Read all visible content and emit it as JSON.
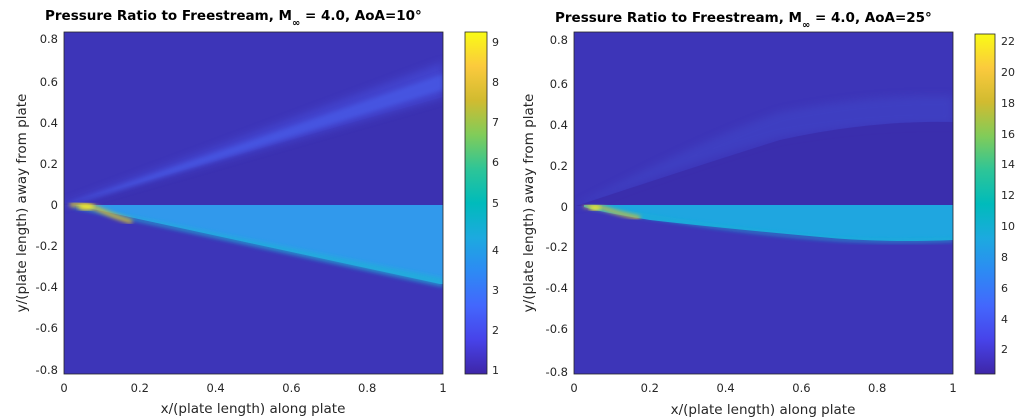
{
  "chart_data": [
    {
      "type": "heatmap",
      "title": "Pressure Ratio to Freestream, M",
      "title_sub": "∞",
      "title_rest": " = 4.0, AoA=10°",
      "xlabel": "x/(plate length) along plate",
      "ylabel": "y/(plate length) away from plate",
      "xlim": [
        0,
        1
      ],
      "ylim": [
        -0.82,
        0.84
      ],
      "xticks": [
        "0",
        "0.2",
        "0.4",
        "0.6",
        "0.8",
        "1"
      ],
      "yticks": [
        "-0.8",
        "-0.6",
        "-0.4",
        "-0.2",
        "0",
        "0.2",
        "0.4",
        "0.6",
        "0.8"
      ],
      "colorbar": {
        "clim": [
          0.8,
          9.3
        ],
        "ticks": [
          "1",
          "2",
          "3",
          "4",
          "5",
          "6",
          "7",
          "8",
          "9"
        ]
      },
      "colormap": "parula",
      "field": {
        "freestream": 1.0,
        "upper_expansion_region": 0.92,
        "upper_shock_top": 0.58,
        "upper_shock_value": 1.7,
        "lower_shock_end_y": -0.38,
        "post_shock_region": 3.6,
        "leading_edge_peak": 9.0,
        "plate_y": 0
      }
    },
    {
      "type": "heatmap",
      "title": "Pressure Ratio to Freestream, M",
      "title_sub": "∞",
      "title_rest": " = 4.0, AoA=25°",
      "xlabel": "x/(plate length) along plate",
      "ylabel": "y/(plate length) away from plate",
      "xlim": [
        0,
        1
      ],
      "ylim": [
        -0.82,
        0.84
      ],
      "xticks": [
        "0",
        "0.2",
        "0.4",
        "0.6",
        "0.8",
        "1"
      ],
      "yticks": [
        "-0.8",
        "-0.6",
        "-0.4",
        "-0.2",
        "0",
        "0.2",
        "0.4",
        "0.6",
        "0.8"
      ],
      "colorbar": {
        "clim": [
          0.2,
          22.5
        ],
        "ticks": [
          "2",
          "4",
          "6",
          "8",
          "10",
          "12",
          "14",
          "16",
          "18",
          "20",
          "22"
        ]
      },
      "colormap": "parula",
      "field": {
        "freestream": 1.0,
        "upper_expansion_region": 0.6,
        "upper_shock_top": 0.5,
        "upper_shock_value": 1.8,
        "lower_shock_end_y": -0.18,
        "post_shock_region": 9.0,
        "leading_edge_peak": 21.0,
        "plate_y": 0
      }
    }
  ]
}
